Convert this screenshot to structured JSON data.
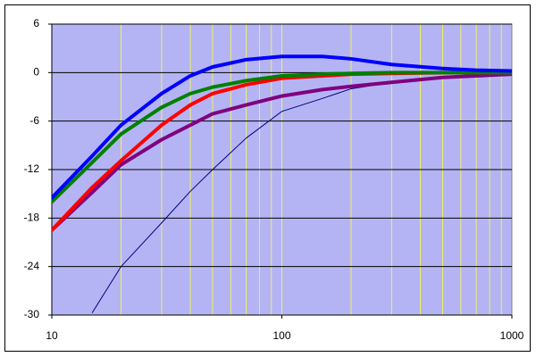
{
  "chart_data": {
    "type": "line",
    "x": [
      10,
      15,
      20,
      30,
      40,
      50,
      70,
      100,
      150,
      200,
      300,
      500,
      700,
      1000
    ],
    "series": [
      {
        "color": "#000080",
        "width": 1,
        "values": [
          null,
          -29.7,
          -24,
          -18.6,
          -14.7,
          -12,
          -8.1,
          -4.8,
          -3.2,
          -2.0,
          -1.2,
          -0.5,
          -0.3,
          -0.1
        ]
      },
      {
        "color": "#800080",
        "width": 4,
        "values": [
          -19.5,
          -14.8,
          -11.4,
          -8.3,
          -6.5,
          -5.1,
          -4.0,
          -2.9,
          -2.1,
          -1.7,
          -1.2,
          -0.6,
          -0.4,
          -0.2
        ]
      },
      {
        "color": "#ff0000",
        "width": 4,
        "values": [
          -19.5,
          -14.2,
          -10.9,
          -6.5,
          -4.0,
          -2.6,
          -1.5,
          -0.7,
          -0.4,
          -0.2,
          -0.1,
          0,
          0,
          0
        ]
      },
      {
        "color": "#008000",
        "width": 4,
        "values": [
          -16,
          -11.1,
          -7.6,
          -4.3,
          -2.6,
          -1.8,
          -1.0,
          -0.4,
          -0.2,
          -0.1,
          0,
          0,
          0,
          0
        ]
      },
      {
        "color": "#0000ff",
        "width": 4,
        "values": [
          -15.5,
          -10.3,
          -6.5,
          -2.6,
          -0.4,
          0.7,
          1.6,
          2.0,
          2.0,
          1.7,
          1.0,
          0.5,
          0.3,
          0.2
        ]
      }
    ],
    "xlim": [
      10,
      1000
    ],
    "xticks": [
      10,
      100,
      1000
    ],
    "xscale": "log",
    "xgrid": [
      20,
      30,
      40,
      50,
      60,
      70,
      80,
      90,
      100,
      200,
      300,
      400,
      500,
      600,
      700,
      800,
      900
    ],
    "ylim": [
      -30,
      6
    ],
    "yticks": [
      -30,
      -24,
      -18,
      -12,
      -6,
      0,
      6
    ],
    "plot_background": "#b4b4f4",
    "xgrid_color": "#f0f060",
    "ygrid_color": "#000000"
  }
}
